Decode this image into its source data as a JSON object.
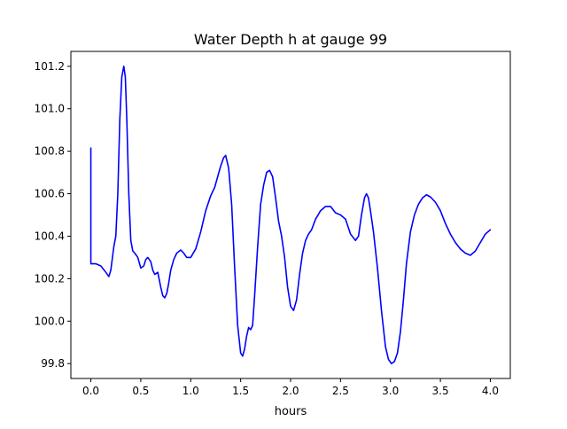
{
  "chart_data": {
    "type": "line",
    "title": "Water Depth h at gauge 99",
    "xlabel": "hours",
    "ylabel": "",
    "xlim": [
      -0.2,
      4.2
    ],
    "ylim": [
      99.73,
      101.27
    ],
    "xticks": [
      0.0,
      0.5,
      1.0,
      1.5,
      2.0,
      2.5,
      3.0,
      3.5,
      4.0
    ],
    "xtick_labels": [
      "0.0",
      "0.5",
      "1.0",
      "1.5",
      "2.0",
      "2.5",
      "3.0",
      "3.5",
      "4.0"
    ],
    "yticks": [
      99.8,
      100.0,
      100.2,
      100.4,
      100.6,
      100.8,
      101.0,
      101.2
    ],
    "ytick_labels": [
      "99.8",
      "100.0",
      "100.2",
      "100.4",
      "100.6",
      "100.8",
      "101.0",
      "101.2"
    ],
    "grid": false,
    "series": [
      {
        "color": "#0000ff",
        "x": [
          0.0,
          0.0,
          0.05,
          0.1,
          0.15,
          0.18,
          0.2,
          0.23,
          0.25,
          0.27,
          0.29,
          0.31,
          0.33,
          0.345,
          0.36,
          0.38,
          0.4,
          0.42,
          0.44,
          0.47,
          0.5,
          0.53,
          0.55,
          0.57,
          0.6,
          0.62,
          0.64,
          0.67,
          0.7,
          0.72,
          0.74,
          0.76,
          0.78,
          0.8,
          0.83,
          0.86,
          0.9,
          0.93,
          0.96,
          1.0,
          1.05,
          1.1,
          1.15,
          1.2,
          1.24,
          1.27,
          1.3,
          1.33,
          1.35,
          1.38,
          1.41,
          1.44,
          1.47,
          1.5,
          1.52,
          1.54,
          1.56,
          1.58,
          1.6,
          1.62,
          1.64,
          1.67,
          1.7,
          1.73,
          1.76,
          1.79,
          1.82,
          1.85,
          1.88,
          1.91,
          1.94,
          1.97,
          2.0,
          2.03,
          2.06,
          2.09,
          2.12,
          2.15,
          2.18,
          2.21,
          2.25,
          2.3,
          2.35,
          2.4,
          2.45,
          2.5,
          2.55,
          2.6,
          2.65,
          2.68,
          2.71,
          2.74,
          2.76,
          2.78,
          2.8,
          2.83,
          2.87,
          2.91,
          2.95,
          2.98,
          3.01,
          3.04,
          3.07,
          3.1,
          3.13,
          3.16,
          3.2,
          3.24,
          3.28,
          3.32,
          3.36,
          3.4,
          3.45,
          3.5,
          3.55,
          3.6,
          3.65,
          3.7,
          3.75,
          3.8,
          3.85,
          3.9,
          3.95,
          4.0
        ],
        "values": [
          100.815,
          100.27,
          100.27,
          100.26,
          100.23,
          100.21,
          100.24,
          100.35,
          100.4,
          100.6,
          100.95,
          101.15,
          101.2,
          101.15,
          100.95,
          100.6,
          100.38,
          100.33,
          100.32,
          100.3,
          100.25,
          100.26,
          100.29,
          100.3,
          100.28,
          100.24,
          100.22,
          100.23,
          100.16,
          100.12,
          100.11,
          100.13,
          100.18,
          100.24,
          100.29,
          100.32,
          100.335,
          100.32,
          100.3,
          100.3,
          100.34,
          100.42,
          100.52,
          100.59,
          100.63,
          100.68,
          100.73,
          100.77,
          100.78,
          100.72,
          100.55,
          100.25,
          99.98,
          99.85,
          99.835,
          99.87,
          99.93,
          99.97,
          99.96,
          99.98,
          100.12,
          100.35,
          100.55,
          100.64,
          100.7,
          100.71,
          100.68,
          100.58,
          100.47,
          100.4,
          100.3,
          100.16,
          100.07,
          100.05,
          100.1,
          100.22,
          100.32,
          100.38,
          100.41,
          100.43,
          100.48,
          100.52,
          100.54,
          100.54,
          100.51,
          100.5,
          100.48,
          100.41,
          100.38,
          100.4,
          100.5,
          100.58,
          100.6,
          100.58,
          100.52,
          100.42,
          100.25,
          100.05,
          99.88,
          99.82,
          99.8,
          99.81,
          99.85,
          99.95,
          100.1,
          100.27,
          100.42,
          100.5,
          100.55,
          100.58,
          100.595,
          100.585,
          100.56,
          100.52,
          100.46,
          100.41,
          100.37,
          100.34,
          100.32,
          100.31,
          100.33,
          100.37,
          100.41,
          100.43
        ]
      }
    ]
  }
}
